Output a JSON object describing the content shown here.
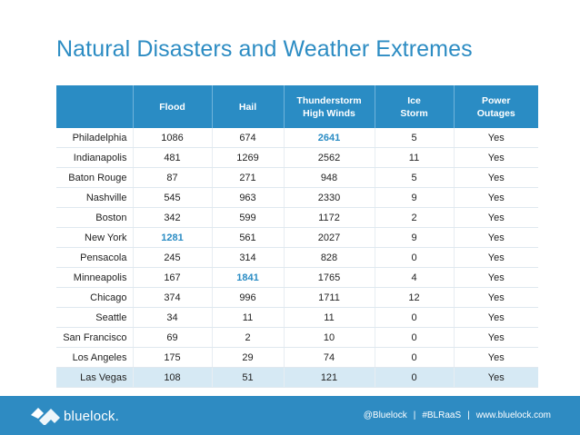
{
  "title": "Natural Disasters and Weather Extremes",
  "table": {
    "headers": [
      "",
      "Flood",
      "Hail",
      "Thunderstorm High Winds",
      "Ice Storm",
      "Power Outages"
    ],
    "rows": [
      {
        "city": "Philadelphia",
        "flood": "1086",
        "hail": "674",
        "thunderstorm": "2641",
        "ice": "5",
        "power": "Yes"
      },
      {
        "city": "Indianapolis",
        "flood": "481",
        "hail": "1269",
        "thunderstorm": "2562",
        "ice": "11",
        "power": "Yes"
      },
      {
        "city": "Baton Rouge",
        "flood": "87",
        "hail": "271",
        "thunderstorm": "948",
        "ice": "5",
        "power": "Yes"
      },
      {
        "city": "Nashville",
        "flood": "545",
        "hail": "963",
        "thunderstorm": "2330",
        "ice": "9",
        "power": "Yes"
      },
      {
        "city": "Boston",
        "flood": "342",
        "hail": "599",
        "thunderstorm": "1172",
        "ice": "2",
        "power": "Yes"
      },
      {
        "city": "New York",
        "flood": "1281",
        "hail": "561",
        "thunderstorm": "2027",
        "ice": "9",
        "power": "Yes"
      },
      {
        "city": "Pensacola",
        "flood": "245",
        "hail": "314",
        "thunderstorm": "828",
        "ice": "0",
        "power": "Yes"
      },
      {
        "city": "Minneapolis",
        "flood": "167",
        "hail": "1841",
        "thunderstorm": "1765",
        "ice": "4",
        "power": "Yes"
      },
      {
        "city": "Chicago",
        "flood": "374",
        "hail": "996",
        "thunderstorm": "1711",
        "ice": "12",
        "power": "Yes"
      },
      {
        "city": "Seattle",
        "flood": "34",
        "hail": "11",
        "thunderstorm": "11",
        "ice": "0",
        "power": "Yes"
      },
      {
        "city": "San Francisco",
        "flood": "69",
        "hail": "2",
        "thunderstorm": "10",
        "ice": "0",
        "power": "Yes"
      },
      {
        "city": "Los Angeles",
        "flood": "175",
        "hail": "29",
        "thunderstorm": "74",
        "ice": "0",
        "power": "Yes"
      },
      {
        "city": "Las Vegas",
        "flood": "108",
        "hail": "51",
        "thunderstorm": "121",
        "ice": "0",
        "power": "Yes"
      }
    ]
  },
  "footer": {
    "logo_text": "bluelock.",
    "links": [
      "@Bluelock",
      "#BLRaaS",
      "www.bluelock.com"
    ],
    "separator": "|"
  },
  "colors": {
    "brand_blue": "#2a8cc4",
    "highlight_row": "#d6e9f4"
  }
}
